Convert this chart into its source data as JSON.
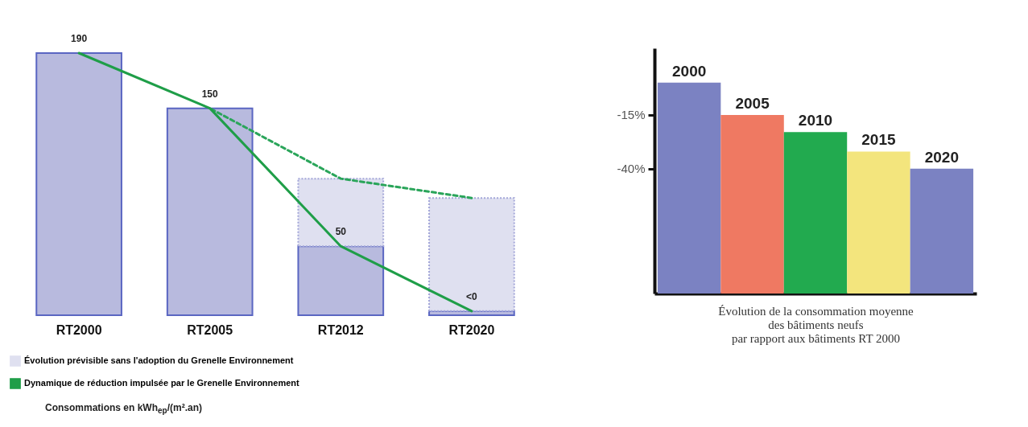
{
  "chart_data": [
    {
      "type": "bar",
      "categories": [
        "RT2000",
        "RT2005",
        "RT2012",
        "RT2020"
      ],
      "series": [
        {
          "type": "bar",
          "color": "#b8bade",
          "values": [
            190,
            150,
            50,
            3
          ],
          "value_labels": [
            "190",
            "150",
            "50",
            "<0"
          ]
        },
        {
          "type": "bar",
          "name": "Évolution prévisible sans l'adoption du Grenelle Environnement",
          "color": "#dfe0f0",
          "values": [
            null,
            null,
            49,
            82
          ],
          "line_style": "dotted"
        },
        {
          "type": "line",
          "color": "#2aa55a",
          "values": [
            null,
            150,
            99,
            85
          ],
          "line_style": "dashed"
        },
        {
          "type": "line",
          "name": "Dynamique de réduction impulsée par le Grenelle Environnement",
          "color": "#1f9e48",
          "values": [
            190,
            150,
            50,
            3
          ],
          "line_style": "solid"
        }
      ],
      "stacked": true,
      "legend": "bottom left",
      "tick_labels": "x",
      "grid": false,
      "annotations": [
        "Consommations en kWh$_{ep}$/(m².an)"
      ]
    },
    {
      "type": "bar",
      "categories": [
        "2000",
        "2005",
        "2010",
        "2015",
        "2020"
      ],
      "base": [
        -98,
        -98,
        -98,
        -98,
        -98
      ],
      "values": [
        98,
        83,
        75,
        66,
        58
      ],
      "colors": [
        "#7b82c2",
        "#ef7962",
        "#22aa4f",
        "#f3e57d",
        "#7b82c2"
      ],
      "ylim": [
        -98,
        16
      ],
      "yticks": [
        {
          "value": -15,
          "label": "-15%"
        },
        {
          "value": -40,
          "label": "-40%"
        }
      ],
      "xlabel": "Évolution de la consommation moyenne\ndes bâtiments neufs\npar rapport aux bâtiments RT 2000",
      "grid": false
    }
  ]
}
